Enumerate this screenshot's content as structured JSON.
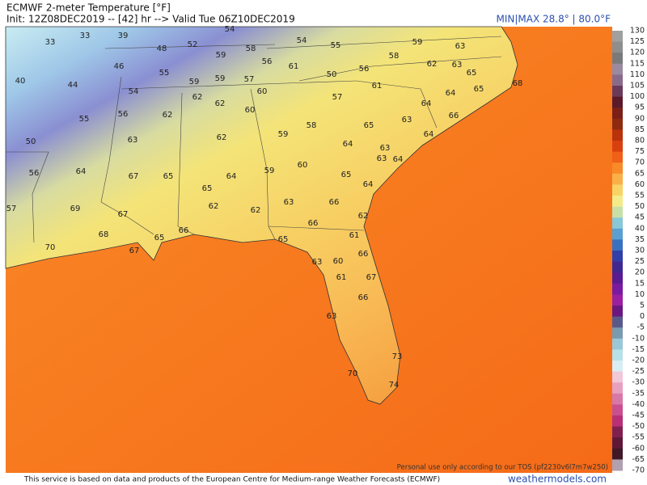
{
  "header": {
    "title": "ECMWF 2-meter Temperature [°F]",
    "init": "Init: 12Z08DEC2019 -- [42] hr --> Valid Tue 06Z10DEC2019",
    "minmax": "MIN|MAX 28.8° | 80.0°F"
  },
  "colorbar": {
    "labels": [
      130,
      125,
      120,
      115,
      110,
      105,
      100,
      95,
      90,
      85,
      80,
      75,
      70,
      65,
      60,
      55,
      50,
      45,
      40,
      35,
      30,
      25,
      20,
      15,
      10,
      5,
      0,
      -5,
      -10,
      -15,
      -20,
      -25,
      -30,
      -35,
      -40,
      -45,
      -50,
      -55,
      -60,
      -65,
      -70
    ]
  },
  "map_labels": [
    33,
    33,
    39,
    48,
    52,
    54,
    54,
    55,
    59,
    63,
    40,
    44,
    46,
    55,
    59,
    58,
    56,
    61,
    50,
    56,
    58,
    62,
    63,
    65,
    68,
    54,
    59,
    59,
    57,
    60,
    61,
    64,
    65,
    64,
    55,
    56,
    62,
    62,
    62,
    60,
    57,
    58,
    65,
    63,
    66,
    64,
    50,
    63,
    62,
    59,
    64,
    63,
    64,
    63,
    60,
    65,
    59,
    56,
    64,
    67,
    65,
    64,
    65,
    63,
    66,
    64,
    57,
    69,
    67,
    62,
    62,
    62,
    66,
    68,
    65,
    66,
    61,
    65,
    70,
    67,
    66,
    63,
    60,
    61,
    67,
    66,
    63,
    73,
    70,
    74
  ],
  "footer": {
    "credit": "This service is based on data and products of the European Centre for Medium-range Weather Forecasts (ECMWF)",
    "site": "weathermodels.com",
    "tos": "Personal use only according to our TOS (pf2230v6l7m7w250)"
  }
}
